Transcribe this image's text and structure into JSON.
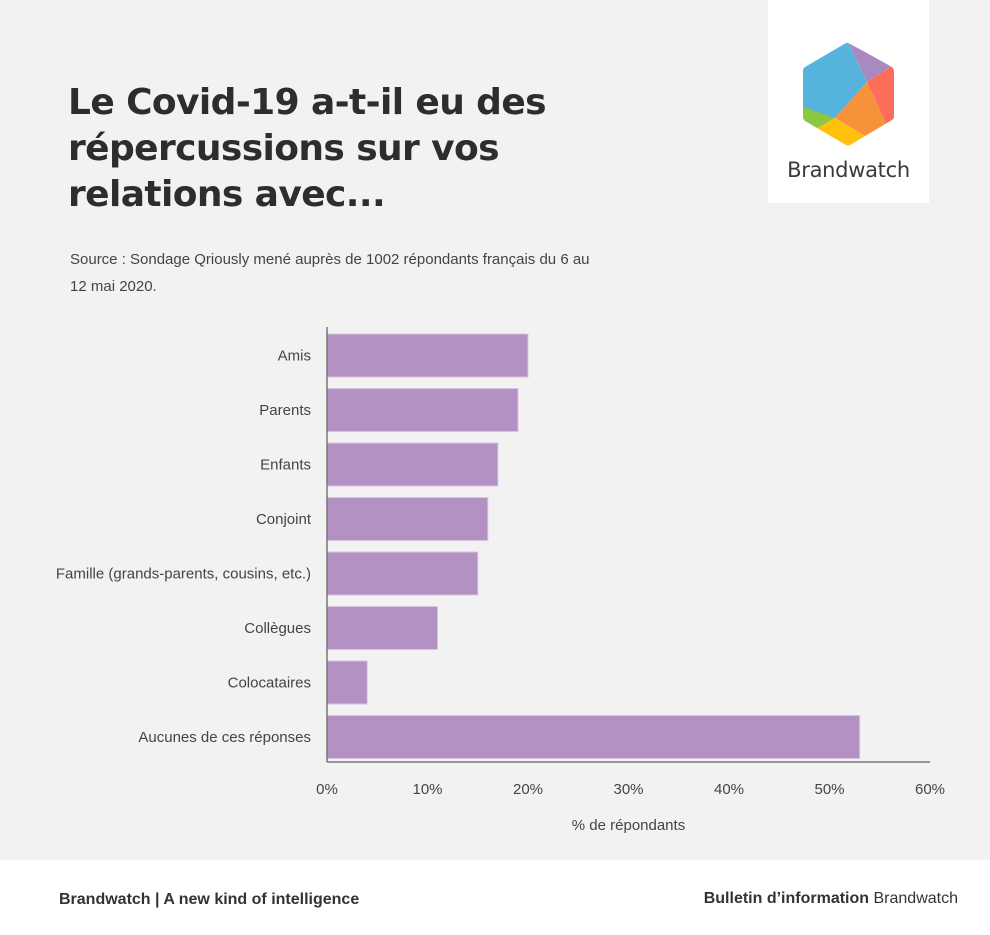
{
  "header": {
    "title": "Le Covid-19 a-t-il eu des répercussions sur vos relations avec...",
    "source": "Source : Sondage Qriously mené auprès de 1002 répondants français du 6 au 12 mai 2020."
  },
  "logo": {
    "text": "Brandwatch",
    "colors": [
      "#56b4dc",
      "#a98ac0",
      "#fd6e5a",
      "#f7913a",
      "#ffc10e",
      "#8dc63f"
    ]
  },
  "chart_data": {
    "type": "bar",
    "orientation": "horizontal",
    "title": "Le Covid-19 a-t-il eu des répercussions sur vos relations avec...",
    "categories": [
      "Amis",
      "Parents",
      "Enfants",
      "Conjoint",
      "Famille (grands-parents, cousins, etc.)",
      "Collègues",
      "Colocataires",
      "Aucunes de ces réponses"
    ],
    "values": [
      20,
      19,
      17,
      16,
      15,
      11,
      4,
      53
    ],
    "xlabel": "% de répondants",
    "ylabel": "",
    "xlim": [
      0,
      60
    ],
    "xticks": [
      0,
      10,
      20,
      30,
      40,
      50,
      60
    ],
    "xtick_labels": [
      "0%",
      "10%",
      "20%",
      "30%",
      "40%",
      "50%",
      "60%"
    ],
    "grid": false,
    "bar_color": "#b491c3"
  },
  "footer": {
    "left": "Brandwatch | A new kind of intelligence",
    "right_bold": "Bulletin d’information",
    "right_regular": "Brandwatch"
  }
}
